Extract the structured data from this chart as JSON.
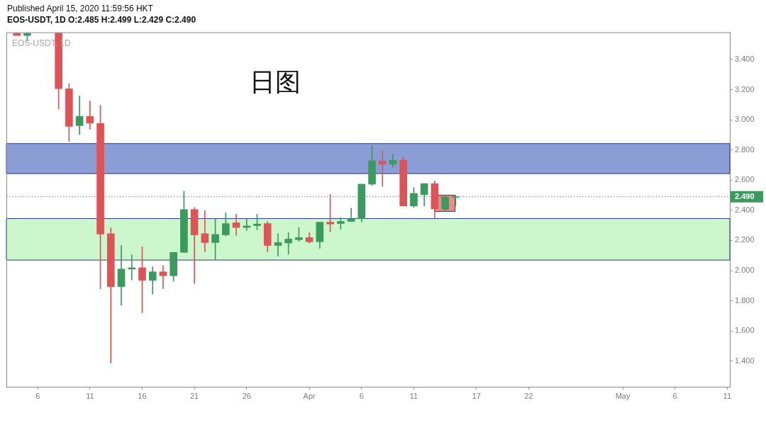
{
  "chart_data": {
    "type": "candlestick",
    "title": "Published April 15, 2020 11:59:56 HKT",
    "subtitle": "EOS-USDT, 1D O:2.485 H:2.499 L:2.429 C:2.490",
    "annotations": [
      "EOS-USDT, 1D",
      "日图"
    ],
    "x": [
      "2020-03-04",
      "2020-03-05",
      "2020-03-08",
      "2020-03-09",
      "2020-03-10",
      "2020-03-11",
      "2020-03-12",
      "2020-03-13",
      "2020-03-14",
      "2020-03-15",
      "2020-03-16",
      "2020-03-17",
      "2020-03-18",
      "2020-03-19",
      "2020-03-20",
      "2020-03-21",
      "2020-03-22",
      "2020-03-23",
      "2020-03-24",
      "2020-03-25",
      "2020-03-26",
      "2020-03-27",
      "2020-03-28",
      "2020-03-29",
      "2020-03-30",
      "2020-03-31",
      "2020-04-01",
      "2020-04-02",
      "2020-04-03",
      "2020-04-04",
      "2020-04-05",
      "2020-04-06",
      "2020-04-07",
      "2020-04-08",
      "2020-04-09",
      "2020-04-10",
      "2020-04-11",
      "2020-04-12",
      "2020-04-13",
      "2020-04-14",
      "2020-04-15"
    ],
    "ohlc": [
      [
        3.573,
        3.575,
        3.558,
        3.558
      ],
      [
        3.558,
        3.575,
        3.522,
        3.573
      ],
      [
        3.575,
        3.575,
        3.07,
        3.206
      ],
      [
        3.206,
        3.24,
        2.856,
        2.956
      ],
      [
        2.961,
        3.158,
        2.902,
        3.023
      ],
      [
        3.023,
        3.124,
        2.938,
        2.977
      ],
      [
        2.975,
        3.096,
        1.879,
        2.243
      ],
      [
        2.245,
        2.284,
        1.387,
        1.894
      ],
      [
        1.894,
        2.167,
        1.771,
        2.01
      ],
      [
        2.01,
        2.105,
        1.938,
        2.019
      ],
      [
        2.019,
        2.158,
        1.721,
        1.935
      ],
      [
        1.935,
        2.026,
        1.845,
        1.992
      ],
      [
        1.992,
        2.034,
        1.881,
        1.966
      ],
      [
        1.966,
        2.121,
        1.929,
        2.121
      ],
      [
        2.121,
        2.526,
        2.121,
        2.405
      ],
      [
        2.405,
        2.419,
        1.915,
        2.237
      ],
      [
        2.245,
        2.398,
        2.124,
        2.186
      ],
      [
        2.186,
        2.344,
        2.074,
        2.24
      ],
      [
        2.237,
        2.384,
        2.229,
        2.312
      ],
      [
        2.317,
        2.374,
        2.233,
        2.286
      ],
      [
        2.286,
        2.344,
        2.266,
        2.296
      ],
      [
        2.298,
        2.374,
        2.271,
        2.309
      ],
      [
        2.312,
        2.326,
        2.124,
        2.167
      ],
      [
        2.167,
        2.245,
        2.096,
        2.186
      ],
      [
        2.183,
        2.251,
        2.108,
        2.209
      ],
      [
        2.205,
        2.286,
        2.194,
        2.219
      ],
      [
        2.219,
        2.251,
        2.183,
        2.191
      ],
      [
        2.191,
        2.321,
        2.147,
        2.321
      ],
      [
        2.321,
        2.507,
        2.256,
        2.309
      ],
      [
        2.312,
        2.352,
        2.274,
        2.326
      ],
      [
        2.326,
        2.414,
        2.326,
        2.344
      ],
      [
        2.345,
        2.573,
        2.322,
        2.573
      ],
      [
        2.573,
        2.829,
        2.565,
        2.729
      ],
      [
        2.726,
        2.798,
        2.558,
        2.705
      ],
      [
        2.705,
        2.772,
        2.685,
        2.731
      ],
      [
        2.733,
        2.752,
        2.429,
        2.429
      ],
      [
        2.429,
        2.55,
        2.419,
        2.512
      ],
      [
        2.504,
        2.577,
        2.429,
        2.577
      ],
      [
        2.577,
        2.595,
        2.349,
        2.41
      ],
      [
        2.407,
        2.503,
        2.391,
        2.488
      ],
      [
        2.485,
        2.499,
        2.429,
        2.49
      ]
    ],
    "colors": [
      "#df5357",
      "#3b9a5d",
      "#df5357",
      "#df5357",
      "#3b9a5d",
      "#df5357",
      "#df5357",
      "#df5357",
      "#3b9a5d",
      "#3b9a5d",
      "#df5357",
      "#3b9a5d",
      "#df5357",
      "#3b9a5d",
      "#3b9a5d",
      "#df5357",
      "#df5357",
      "#3b9a5d",
      "#3b9a5d",
      "#df5357",
      "#3b9a5d",
      "#3b9a5d",
      "#df5357",
      "#3b9a5d",
      "#3b9a5d",
      "#3b9a5d",
      "#df5357",
      "#3b9a5d",
      "#df5357",
      "#3b9a5d",
      "#3b9a5d",
      "#3b9a5d",
      "#3b9a5d",
      "#df5357",
      "#3b9a5d",
      "#df5357",
      "#3b9a5d",
      "#3b9a5d",
      "#df5357",
      "#3b9a5d",
      "#3b9a5d"
    ],
    "xlim": [
      "2020-03-03",
      "2020-05-11T06:00"
    ],
    "xticks": [
      {
        "value": "2020-03-06",
        "label": "6"
      },
      {
        "value": "2020-03-11",
        "label": "11"
      },
      {
        "value": "2020-03-16",
        "label": "16"
      },
      {
        "value": "2020-03-21",
        "label": "21"
      },
      {
        "value": "2020-03-26",
        "label": "26"
      },
      {
        "value": "2020-04-01",
        "label": "Apr"
      },
      {
        "value": "2020-04-06",
        "label": "6"
      },
      {
        "value": "2020-04-11",
        "label": "11"
      },
      {
        "value": "2020-04-17",
        "label": "17"
      },
      {
        "value": "2020-04-22",
        "label": "22"
      },
      {
        "value": "2020-05-01",
        "label": "May"
      },
      {
        "value": "2020-05-06",
        "label": "6"
      },
      {
        "value": "2020-05-11",
        "label": "11"
      }
    ],
    "ylim": [
      1.23,
      3.58
    ],
    "yticks": [
      {
        "value": 1.4,
        "label": "1.400"
      },
      {
        "value": 1.6,
        "label": "1.600"
      },
      {
        "value": 1.8,
        "label": "1.800"
      },
      {
        "value": 2.0,
        "label": "2.000"
      },
      {
        "value": 2.2,
        "label": "2.200"
      },
      {
        "value": 2.4,
        "label": "2.400"
      },
      {
        "value": 2.6,
        "label": "2.600"
      },
      {
        "value": 2.8,
        "label": "2.800"
      },
      {
        "value": 3.0,
        "label": "3.000"
      },
      {
        "value": 3.2,
        "label": "3.200"
      },
      {
        "value": 3.4,
        "label": "3.400"
      }
    ],
    "bands": [
      {
        "axis": "y",
        "from": 2.643,
        "to": 2.842,
        "color": "#8a9dd4"
      },
      {
        "axis": "y",
        "from": 2.07,
        "to": 2.345,
        "color": "#ccf6cb"
      }
    ],
    "ref_lines": [
      {
        "axis": "y",
        "value": 2.49,
        "label": "2.490",
        "color": "#3b9a5d",
        "line_style": "dotted"
      }
    ]
  }
}
